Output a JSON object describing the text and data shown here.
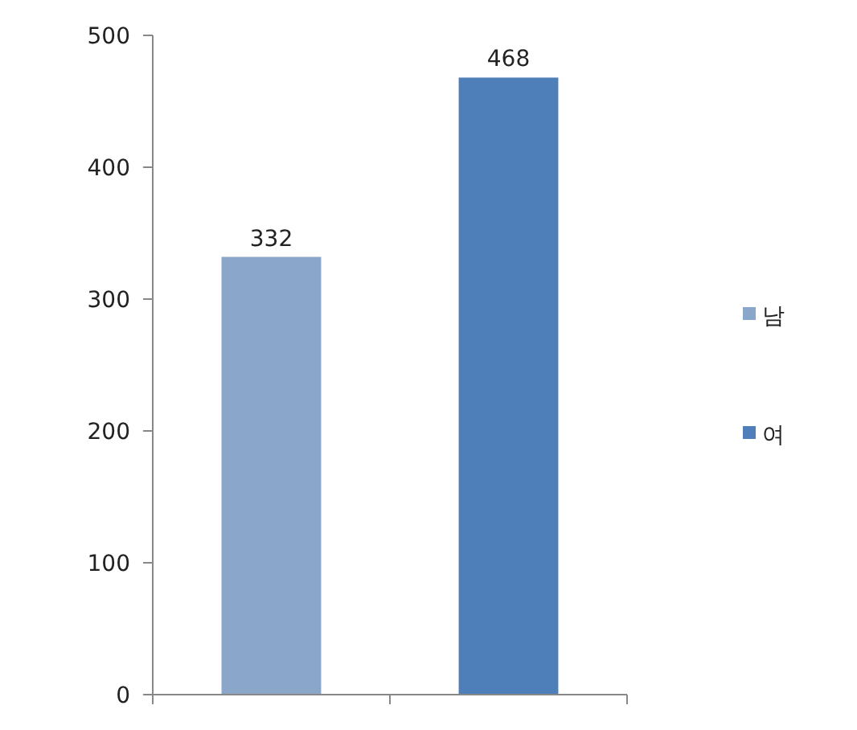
{
  "chart_data": {
    "type": "bar",
    "categories": [
      null,
      null
    ],
    "series": [
      {
        "name": "남",
        "color": "#8aa6c8",
        "values": [
          332,
          null
        ]
      },
      {
        "name": "여",
        "color": "#4f7fb8",
        "values": [
          null,
          468
        ]
      }
    ],
    "ylim": [
      0,
      500
    ],
    "yticks": [
      0,
      100,
      200,
      300,
      400,
      500
    ],
    "data_labels": true,
    "legend": "right",
    "grid": false
  }
}
